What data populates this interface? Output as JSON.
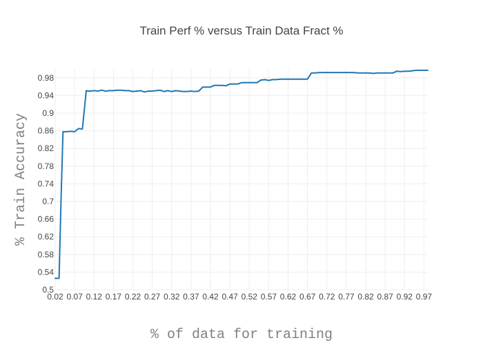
{
  "chart_data": {
    "type": "line",
    "title": "Train Perf % versus Train Data Fract %",
    "xlabel": "% of data for training",
    "ylabel": "% Train Accuracy",
    "xlim": [
      0.02,
      0.98
    ],
    "ylim": [
      0.5,
      1.0
    ],
    "grid": true,
    "x_ticks": [
      "0.02",
      "0.07",
      "0.12",
      "0.17",
      "0.22",
      "0.27",
      "0.32",
      "0.37",
      "0.42",
      "0.47",
      "0.52",
      "0.57",
      "0.62",
      "0.67",
      "0.72",
      "0.77",
      "0.82",
      "0.87",
      "0.92",
      "0.97"
    ],
    "y_ticks": [
      "0.5",
      "0.54",
      "0.58",
      "0.62",
      "0.66",
      "0.7",
      "0.74",
      "0.78",
      "0.82",
      "0.86",
      "0.9",
      "0.94",
      "0.98"
    ],
    "x_tick_values": [
      0.02,
      0.07,
      0.12,
      0.17,
      0.22,
      0.27,
      0.32,
      0.37,
      0.42,
      0.47,
      0.52,
      0.57,
      0.62,
      0.67,
      0.72,
      0.77,
      0.82,
      0.87,
      0.92,
      0.97
    ],
    "y_tick_values": [
      0.5,
      0.54,
      0.58,
      0.62,
      0.66,
      0.7,
      0.74,
      0.78,
      0.82,
      0.86,
      0.9,
      0.94,
      0.98
    ],
    "colors": {
      "line": "#1f77b4"
    },
    "series": [
      {
        "x": [
          0.02,
          0.025,
          0.03,
          0.035,
          0.04,
          0.05,
          0.06,
          0.07,
          0.08,
          0.09,
          0.1,
          0.105,
          0.11,
          0.12,
          0.13,
          0.14,
          0.15,
          0.16,
          0.17,
          0.18,
          0.19,
          0.2,
          0.21,
          0.22,
          0.23,
          0.24,
          0.25,
          0.26,
          0.27,
          0.28,
          0.29,
          0.3,
          0.31,
          0.32,
          0.33,
          0.34,
          0.35,
          0.36,
          0.37,
          0.38,
          0.39,
          0.4,
          0.41,
          0.42,
          0.43,
          0.44,
          0.45,
          0.46,
          0.47,
          0.48,
          0.49,
          0.5,
          0.51,
          0.52,
          0.53,
          0.54,
          0.55,
          0.56,
          0.57,
          0.58,
          0.59,
          0.6,
          0.61,
          0.62,
          0.63,
          0.64,
          0.65,
          0.66,
          0.67,
          0.68,
          0.69,
          0.7,
          0.71,
          0.72,
          0.73,
          0.74,
          0.75,
          0.76,
          0.77,
          0.78,
          0.79,
          0.8,
          0.81,
          0.82,
          0.83,
          0.84,
          0.85,
          0.86,
          0.87,
          0.88,
          0.89,
          0.9,
          0.91,
          0.92,
          0.93,
          0.94,
          0.95,
          0.96,
          0.97,
          0.98
        ],
        "y": [
          0.526,
          0.526,
          0.526,
          0.7,
          0.858,
          0.858,
          0.859,
          0.858,
          0.865,
          0.864,
          0.951,
          0.95,
          0.95,
          0.951,
          0.95,
          0.952,
          0.95,
          0.951,
          0.951,
          0.952,
          0.952,
          0.951,
          0.951,
          0.949,
          0.95,
          0.951,
          0.948,
          0.95,
          0.95,
          0.951,
          0.952,
          0.949,
          0.951,
          0.949,
          0.951,
          0.95,
          0.949,
          0.949,
          0.95,
          0.949,
          0.95,
          0.959,
          0.959,
          0.959,
          0.963,
          0.963,
          0.963,
          0.962,
          0.966,
          0.966,
          0.966,
          0.969,
          0.969,
          0.969,
          0.969,
          0.969,
          0.975,
          0.976,
          0.974,
          0.976,
          0.976,
          0.977,
          0.977,
          0.977,
          0.977,
          0.977,
          0.977,
          0.977,
          0.977,
          0.991,
          0.991,
          0.992,
          0.992,
          0.992,
          0.992,
          0.992,
          0.992,
          0.992,
          0.992,
          0.992,
          0.992,
          0.991,
          0.991,
          0.991,
          0.991,
          0.99,
          0.991,
          0.991,
          0.991,
          0.991,
          0.991,
          0.995,
          0.994,
          0.995,
          0.995,
          0.996,
          0.997,
          0.997,
          0.997,
          0.997
        ]
      }
    ]
  }
}
